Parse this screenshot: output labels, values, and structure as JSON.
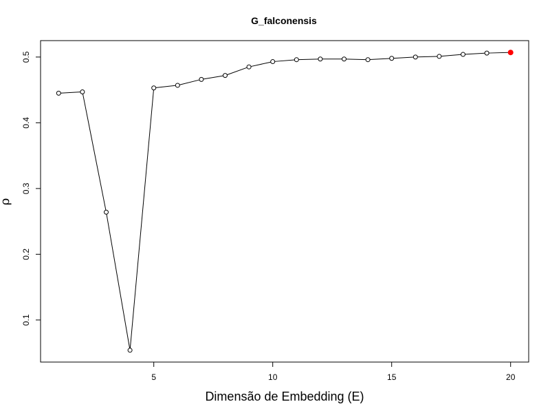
{
  "chart_data": {
    "type": "line",
    "title": "G_falconensis",
    "xlabel": "Dimensão de Embedding (E)",
    "ylabel": "ρ",
    "x": [
      1,
      2,
      3,
      4,
      5,
      6,
      7,
      8,
      9,
      10,
      11,
      12,
      13,
      14,
      15,
      16,
      17,
      18,
      19,
      20
    ],
    "y": [
      0.445,
      0.447,
      0.264,
      0.054,
      0.453,
      0.457,
      0.466,
      0.472,
      0.485,
      0.493,
      0.496,
      0.497,
      0.497,
      0.496,
      0.498,
      0.5,
      0.501,
      0.504,
      0.506,
      0.507
    ],
    "xlim": [
      0.24,
      20.76
    ],
    "ylim": [
      0.036,
      0.525
    ],
    "xticks": [
      5,
      10,
      15,
      20
    ],
    "yticks": [
      0.1,
      0.2,
      0.3,
      0.4,
      0.5
    ],
    "grid": false,
    "point_style": "open-circle",
    "highlight": {
      "x": 20,
      "y": 0.507,
      "color": "#ff0000"
    },
    "line_color": "#000000"
  }
}
